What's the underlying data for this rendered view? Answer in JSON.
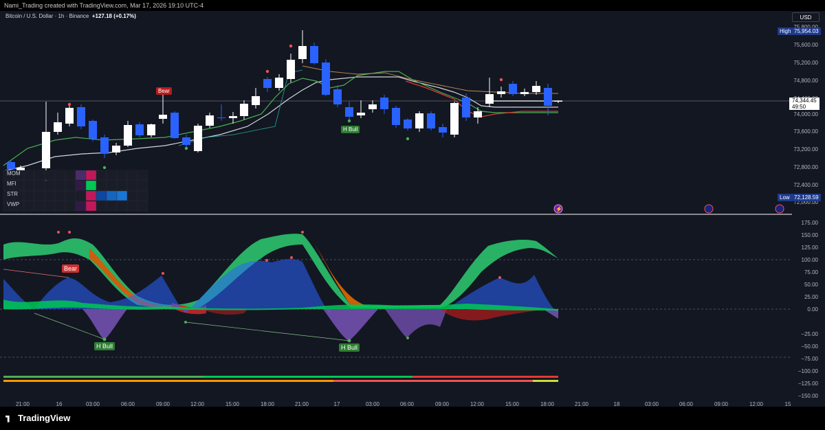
{
  "header": {
    "attribution": "Nami_Trading created with TradingView.com, Mar 17, 2026 19:10 UTC-4"
  },
  "symbol": {
    "name": "Bitcoin / U.S. Dollar · 1h · Binance",
    "change": "+127.18 (+0.17%)"
  },
  "currency_button": "USD",
  "price_axis": {
    "ticks": [
      "75,800.00",
      "75,600.00",
      "75,200.00",
      "74,800.00",
      "74,400.00",
      "74,000.00",
      "73,600.00",
      "73,200.00",
      "72,800.00",
      "72,400.00",
      "72,000.00"
    ],
    "high_label": "High",
    "high_value": "75,954.03",
    "low_label": "Low",
    "low_value": "72,128.59",
    "current_price": "74,344.45",
    "countdown": "49:50"
  },
  "indicator_axis": {
    "ticks": [
      "175.00",
      "150.00",
      "125.00",
      "100.00",
      "75.00",
      "50.00",
      "25.00",
      "0.00",
      "−25.00",
      "−50.00",
      "−75.00",
      "−100.00",
      "−125.00",
      "−150.00"
    ]
  },
  "time_axis": {
    "labels": [
      "21:00",
      "16",
      "03:00",
      "06:00",
      "09:00",
      "12:00",
      "15:00",
      "18:00",
      "21:00",
      "17",
      "03:00",
      "06:00",
      "09:00",
      "12:00",
      "15:00",
      "18:00",
      "21:00",
      "18",
      "03:00",
      "06:00",
      "09:00",
      "12:00",
      "15"
    ]
  },
  "legend_rows": [
    "MOM",
    "MFI",
    "STR",
    "VWP"
  ],
  "signals": {
    "bear": "Bear",
    "h_bull": "H Bull"
  },
  "branding": "TradingView",
  "colors": {
    "bull": "#2962ff",
    "bear_candle": "#ffffff",
    "green": "#2ecc71",
    "red": "#e53935",
    "background": "#131722"
  }
}
